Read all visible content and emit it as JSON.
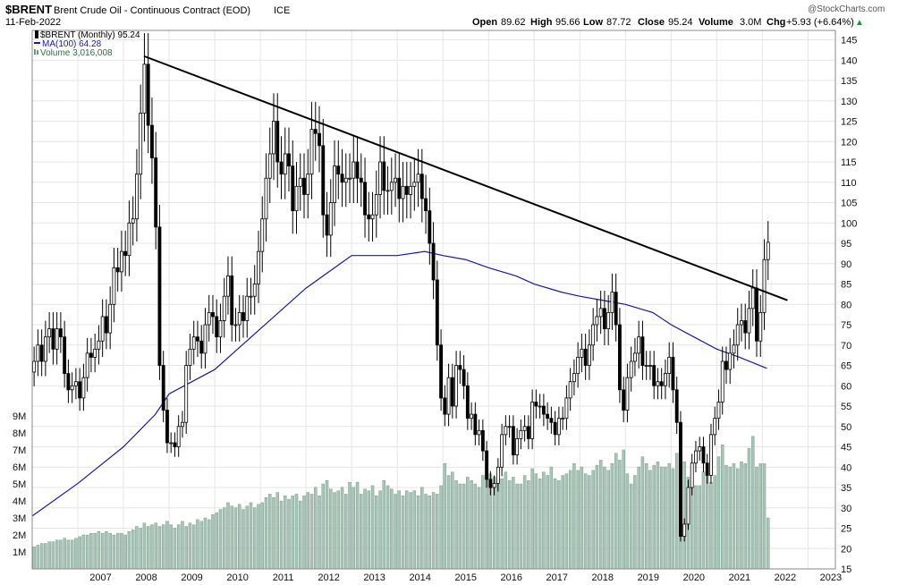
{
  "header": {
    "symbol": "$BRENT",
    "name": "Brent Crude Oil - Continuous Contract (EOD)",
    "exchange": "ICE",
    "date": "11-Feb-2022",
    "open_label": "Open",
    "open": "89.62",
    "high_label": "High",
    "high": "95.66",
    "low_label": "Low",
    "low": "87.72",
    "close_label": "Close",
    "close": "95.24",
    "volume_label": "Volume",
    "volume": "3.0M",
    "chg_label": "Chg",
    "chg": "+5.93 (+6.64%)",
    "arrow": "▲",
    "watermark": "@StockCharts.com"
  },
  "legend": [
    {
      "text": "$BRENT (Monthly) 95.24",
      "color": "#000000",
      "icon": "candle-icon"
    },
    {
      "text": "MA(100) 64.28",
      "color": "#1a1a9a",
      "icon": "line-icon"
    },
    {
      "text": "Volume 3,016,008",
      "color": "#2e6e4e",
      "icon": "bar-icon"
    }
  ],
  "colors": {
    "up": "#ffffff",
    "down": "#000000",
    "ma": "#1a1a9a",
    "volume": "#a8c4b6",
    "volume_edge": "#6f9483",
    "trendline": "#000000",
    "grid": "#e6e6e6"
  },
  "chart_data": {
    "type": "candlestick",
    "interval": "monthly",
    "price_axis": {
      "range": [
        15,
        146
      ],
      "ticks": [
        15,
        20,
        25,
        30,
        35,
        40,
        45,
        50,
        55,
        60,
        65,
        70,
        75,
        80,
        85,
        90,
        95,
        100,
        105,
        110,
        115,
        120,
        125,
        130,
        135,
        140,
        145
      ]
    },
    "volume_axis": {
      "range": [
        0,
        10
      ],
      "unit": "M",
      "ticks": [
        1,
        2,
        3,
        4,
        5,
        6,
        7,
        8,
        9
      ],
      "tick_labels": [
        "1M",
        "2M",
        "3M",
        "4M",
        "5M",
        "6M",
        "7M",
        "8M",
        "9M"
      ]
    },
    "x_axis": {
      "start": 2006.0,
      "end": 2023.6,
      "ticks": [
        2007,
        2008,
        2009,
        2010,
        2011,
        2012,
        2013,
        2014,
        2015,
        2016,
        2017,
        2018,
        2019,
        2020,
        2021,
        2022,
        2023
      ]
    },
    "years": [
      2006,
      2007,
      2008,
      2009,
      2010,
      2011,
      2012,
      2013,
      2014,
      2015,
      2016,
      2017,
      2018,
      2019,
      2020,
      2021,
      2022
    ],
    "closes": [
      [
        66,
        70,
        66,
        72,
        74,
        69,
        74,
        72,
        63,
        59,
        60,
        61
      ],
      [
        57,
        62,
        68,
        67,
        69,
        71,
        77,
        73,
        80,
        89,
        88,
        93
      ],
      [
        92,
        100,
        101,
        112,
        127,
        139,
        124,
        116,
        99,
        65,
        54,
        46
      ],
      [
        46,
        45,
        50,
        51,
        65,
        69,
        72,
        71,
        68,
        75,
        78,
        77
      ],
      [
        72,
        76,
        82,
        87,
        75,
        75,
        78,
        76,
        82,
        82,
        85,
        93
      ],
      [
        101,
        111,
        117,
        125,
        115,
        112,
        117,
        114,
        103,
        109,
        111,
        107
      ],
      [
        112,
        123,
        122,
        119,
        102,
        97,
        105,
        114,
        112,
        110,
        111,
        111
      ],
      [
        115,
        111,
        110,
        102,
        101,
        102,
        107,
        115,
        108,
        108,
        110,
        111
      ],
      [
        106,
        109,
        107,
        109,
        110,
        112,
        106,
        103,
        95,
        86,
        70,
        57
      ],
      [
        53,
        62,
        55,
        65,
        64,
        60,
        52,
        53,
        48,
        49,
        44,
        37
      ],
      [
        35,
        36,
        40,
        48,
        50,
        50,
        43,
        47,
        49,
        50,
        47,
        56
      ],
      [
        55,
        55,
        53,
        52,
        51,
        48,
        52,
        52,
        57,
        61,
        63,
        67
      ],
      [
        69,
        65,
        70,
        75,
        77,
        79,
        74,
        78,
        83,
        75,
        59,
        54
      ],
      [
        62,
        66,
        68,
        72,
        65,
        65,
        65,
        60,
        61,
        60,
        63,
        67
      ],
      [
        59,
        51,
        23,
        26,
        35,
        41,
        44,
        45,
        41,
        38,
        48,
        52
      ],
      [
        56,
        66,
        64,
        68,
        70,
        75,
        76,
        73,
        79,
        84,
        71,
        78
      ],
      [
        91,
        95.24
      ]
    ],
    "ma100": [
      [
        2006.0,
        28
      ],
      [
        2007.0,
        36
      ],
      [
        2008.0,
        45
      ],
      [
        2008.7,
        53
      ],
      [
        2009.0,
        58
      ],
      [
        2010.0,
        64
      ],
      [
        2011.0,
        74
      ],
      [
        2012.0,
        84
      ],
      [
        2013.0,
        92
      ],
      [
        2014.0,
        92
      ],
      [
        2014.6,
        93
      ],
      [
        2015.0,
        92
      ],
      [
        2015.5,
        91
      ],
      [
        2016.0,
        89
      ],
      [
        2016.6,
        87
      ],
      [
        2017.0,
        85
      ],
      [
        2017.6,
        83
      ],
      [
        2018.0,
        82
      ],
      [
        2018.5,
        81
      ],
      [
        2019.0,
        80
      ],
      [
        2019.6,
        78
      ],
      [
        2020.0,
        75
      ],
      [
        2020.5,
        72
      ],
      [
        2021.0,
        69
      ],
      [
        2021.5,
        67
      ],
      [
        2022.1,
        64.28
      ]
    ],
    "trendline": [
      [
        2008.45,
        141
      ],
      [
        2022.55,
        81
      ]
    ],
    "volume_millions": [
      [
        1.3,
        1.4,
        1.5,
        1.5,
        1.6,
        1.6,
        1.7,
        1.7,
        1.8,
        1.7,
        1.7,
        1.8
      ],
      [
        1.9,
        2.0,
        2.0,
        2.1,
        2.1,
        2.2,
        2.1,
        2.2,
        2.1,
        2.0,
        2.1,
        2.1
      ],
      [
        2.0,
        2.2,
        2.3,
        2.5,
        2.4,
        2.7,
        2.5,
        2.6,
        2.7,
        2.5,
        2.6,
        2.8
      ],
      [
        2.6,
        2.4,
        2.6,
        2.8,
        2.5,
        2.7,
        2.6,
        2.9,
        2.8,
        3.0,
        2.9,
        3.2
      ],
      [
        3.3,
        3.5,
        3.6,
        3.9,
        3.7,
        3.6,
        3.8,
        3.5,
        3.7,
        3.9,
        3.6,
        3.8
      ],
      [
        3.9,
        4.2,
        4.4,
        4.2,
        4.5,
        4.0,
        4.3,
        4.1,
        4.3,
        4.4,
        4.0,
        4.3
      ],
      [
        4.5,
        4.4,
        4.8,
        4.3,
        5.0,
        5.2,
        4.7,
        4.5,
        4.6,
        4.8,
        4.4,
        5.1
      ],
      [
        4.8,
        5.1,
        4.4,
        4.7,
        4.6,
        4.9,
        4.3,
        4.6,
        5.2,
        4.9,
        4.7,
        4.4
      ],
      [
        4.6,
        4.3,
        4.6,
        4.5,
        4.6,
        4.3,
        4.8,
        4.4,
        4.3,
        4.5,
        4.4,
        4.9
      ],
      [
        6.2,
        5.5,
        5.7,
        5.2,
        5.0,
        5.0,
        5.4,
        5.2,
        5.0,
        4.8,
        5.5,
        5.4
      ],
      [
        5.6,
        5.4,
        5.0,
        5.3,
        5.7,
        5.2,
        5.4,
        5.0,
        5.0,
        5.5,
        5.2,
        5.9
      ],
      [
        5.6,
        5.3,
        5.7,
        5.5,
        6.0,
        5.3,
        5.2,
        5.5,
        5.6,
        5.8,
        6.2,
        5.8
      ],
      [
        6.0,
        5.6,
        5.5,
        5.8,
        6.1,
        6.4,
        6.0,
        5.8,
        6.2,
        6.8,
        6.4,
        7.0
      ],
      [
        5.6,
        5.0,
        5.5,
        6.0,
        6.6,
        6.2,
        5.8,
        6.1,
        6.3,
        6.0,
        6.0,
        6.2
      ],
      [
        5.9,
        6.8,
        7.6,
        6.3,
        5.4,
        5.5,
        4.9,
        4.9,
        5.7,
        5.5,
        5.1,
        5.5
      ],
      [
        6.6,
        7.3,
        6.1,
        6.0,
        6.2,
        5.9,
        6.3,
        6.2,
        7.1,
        7.8,
        6.0,
        6.2
      ],
      [
        6.2,
        3.0
      ]
    ]
  }
}
